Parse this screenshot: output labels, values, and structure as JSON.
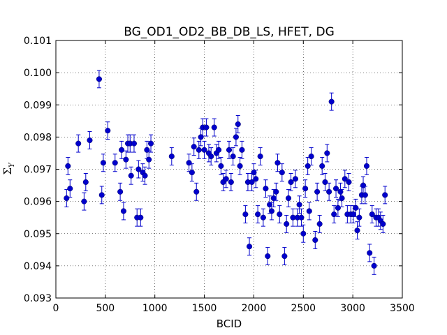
{
  "chart_data": {
    "type": "scatter",
    "title": "BG_OD1_OD2_BB_DB_LS, HFET, DG",
    "xlabel": "BCID",
    "ylabel_base": "Σ",
    "ylabel_sub": "Y",
    "xlim": [
      0,
      3500
    ],
    "ylim": [
      0.093,
      0.101
    ],
    "xticks": [
      0,
      500,
      1000,
      1500,
      2000,
      2500,
      3000,
      3500
    ],
    "yticks": [
      0.093,
      0.094,
      0.095,
      0.096,
      0.097,
      0.098,
      0.099,
      0.1,
      0.101
    ],
    "xtick_labels": [
      "0",
      "500",
      "1000",
      "1500",
      "2000",
      "2500",
      "3000",
      "3500"
    ],
    "ytick_labels": [
      "0.093",
      "0.094",
      "0.095",
      "0.096",
      "0.097",
      "0.098",
      "0.099",
      "0.100",
      "0.101"
    ],
    "grid": true,
    "marker_color": "#0000cc",
    "series": [
      {
        "error": 0.00027,
        "points": [
          [
            108,
            0.0961
          ],
          [
            122,
            0.0971
          ],
          [
            143,
            0.0964
          ],
          [
            227,
            0.0978
          ],
          [
            285,
            0.096
          ],
          [
            302,
            0.0966
          ],
          [
            342,
            0.0979
          ],
          [
            437,
            0.0998
          ],
          [
            464,
            0.0962
          ],
          [
            479,
            0.0972
          ],
          [
            524,
            0.0982
          ],
          [
            598,
            0.0972
          ],
          [
            650,
            0.0963
          ],
          [
            664,
            0.0976
          ],
          [
            684,
            0.0957
          ],
          [
            708,
            0.0973
          ],
          [
            727,
            0.0978
          ],
          [
            750,
            0.0978
          ],
          [
            760,
            0.0968
          ],
          [
            790,
            0.0978
          ],
          [
            820,
            0.0955
          ],
          [
            835,
            0.097
          ],
          [
            856,
            0.0955
          ],
          [
            878,
            0.0969
          ],
          [
            900,
            0.0968
          ],
          [
            920,
            0.0976
          ],
          [
            940,
            0.0973
          ],
          [
            960,
            0.0978
          ],
          [
            1170,
            0.0974
          ],
          [
            1345,
            0.0972
          ],
          [
            1375,
            0.0969
          ],
          [
            1395,
            0.0977
          ],
          [
            1420,
            0.0963
          ],
          [
            1445,
            0.0976
          ],
          [
            1465,
            0.098
          ],
          [
            1484,
            0.0983
          ],
          [
            1500,
            0.0976
          ],
          [
            1520,
            0.0983
          ],
          [
            1545,
            0.0975
          ],
          [
            1568,
            0.0974
          ],
          [
            1600,
            0.0983
          ],
          [
            1622,
            0.0975
          ],
          [
            1645,
            0.0976
          ],
          [
            1668,
            0.0971
          ],
          [
            1690,
            0.0966
          ],
          [
            1720,
            0.0967
          ],
          [
            1750,
            0.0976
          ],
          [
            1770,
            0.0966
          ],
          [
            1790,
            0.0974
          ],
          [
            1820,
            0.098
          ],
          [
            1840,
            0.0984
          ],
          [
            1860,
            0.0971
          ],
          [
            1880,
            0.0976
          ],
          [
            1915,
            0.0956
          ],
          [
            1940,
            0.0966
          ],
          [
            1955,
            0.0946
          ],
          [
            1980,
            0.0966
          ],
          [
            2000,
            0.0969
          ],
          [
            2020,
            0.0967
          ],
          [
            2040,
            0.0956
          ],
          [
            2065,
            0.0974
          ],
          [
            2095,
            0.0955
          ],
          [
            2120,
            0.0964
          ],
          [
            2140,
            0.0943
          ],
          [
            2160,
            0.0959
          ],
          [
            2180,
            0.0957
          ],
          [
            2200,
            0.0961
          ],
          [
            2225,
            0.0963
          ],
          [
            2240,
            0.0972
          ],
          [
            2260,
            0.0956
          ],
          [
            2285,
            0.0969
          ],
          [
            2310,
            0.0943
          ],
          [
            2330,
            0.0953
          ],
          [
            2350,
            0.0961
          ],
          [
            2375,
            0.0966
          ],
          [
            2395,
            0.0955
          ],
          [
            2420,
            0.0967
          ],
          [
            2440,
            0.0955
          ],
          [
            2460,
            0.0959
          ],
          [
            2480,
            0.0955
          ],
          [
            2500,
            0.095
          ],
          [
            2520,
            0.0964
          ],
          [
            2545,
            0.0971
          ],
          [
            2560,
            0.0957
          ],
          [
            2580,
            0.0974
          ],
          [
            2620,
            0.0948
          ],
          [
            2640,
            0.0963
          ],
          [
            2665,
            0.0953
          ],
          [
            2690,
            0.0971
          ],
          [
            2720,
            0.0966
          ],
          [
            2740,
            0.0975
          ],
          [
            2760,
            0.0963
          ],
          [
            2785,
            0.0991
          ],
          [
            2810,
            0.0956
          ],
          [
            2830,
            0.0964
          ],
          [
            2850,
            0.0958
          ],
          [
            2875,
            0.0963
          ],
          [
            2890,
            0.0961
          ],
          [
            2920,
            0.0967
          ],
          [
            2945,
            0.0956
          ],
          [
            2960,
            0.0966
          ],
          [
            2980,
            0.0956
          ],
          [
            3005,
            0.0956
          ],
          [
            3030,
            0.0958
          ],
          [
            3045,
            0.0951
          ],
          [
            3065,
            0.0955
          ],
          [
            3090,
            0.0962
          ],
          [
            3105,
            0.0965
          ],
          [
            3125,
            0.0962
          ],
          [
            3140,
            0.0971
          ],
          [
            3170,
            0.0944
          ],
          [
            3195,
            0.0956
          ],
          [
            3215,
            0.094
          ],
          [
            3235,
            0.0955
          ],
          [
            3260,
            0.0955
          ],
          [
            3280,
            0.0954
          ],
          [
            3305,
            0.0953
          ],
          [
            3325,
            0.0962
          ]
        ]
      }
    ]
  }
}
